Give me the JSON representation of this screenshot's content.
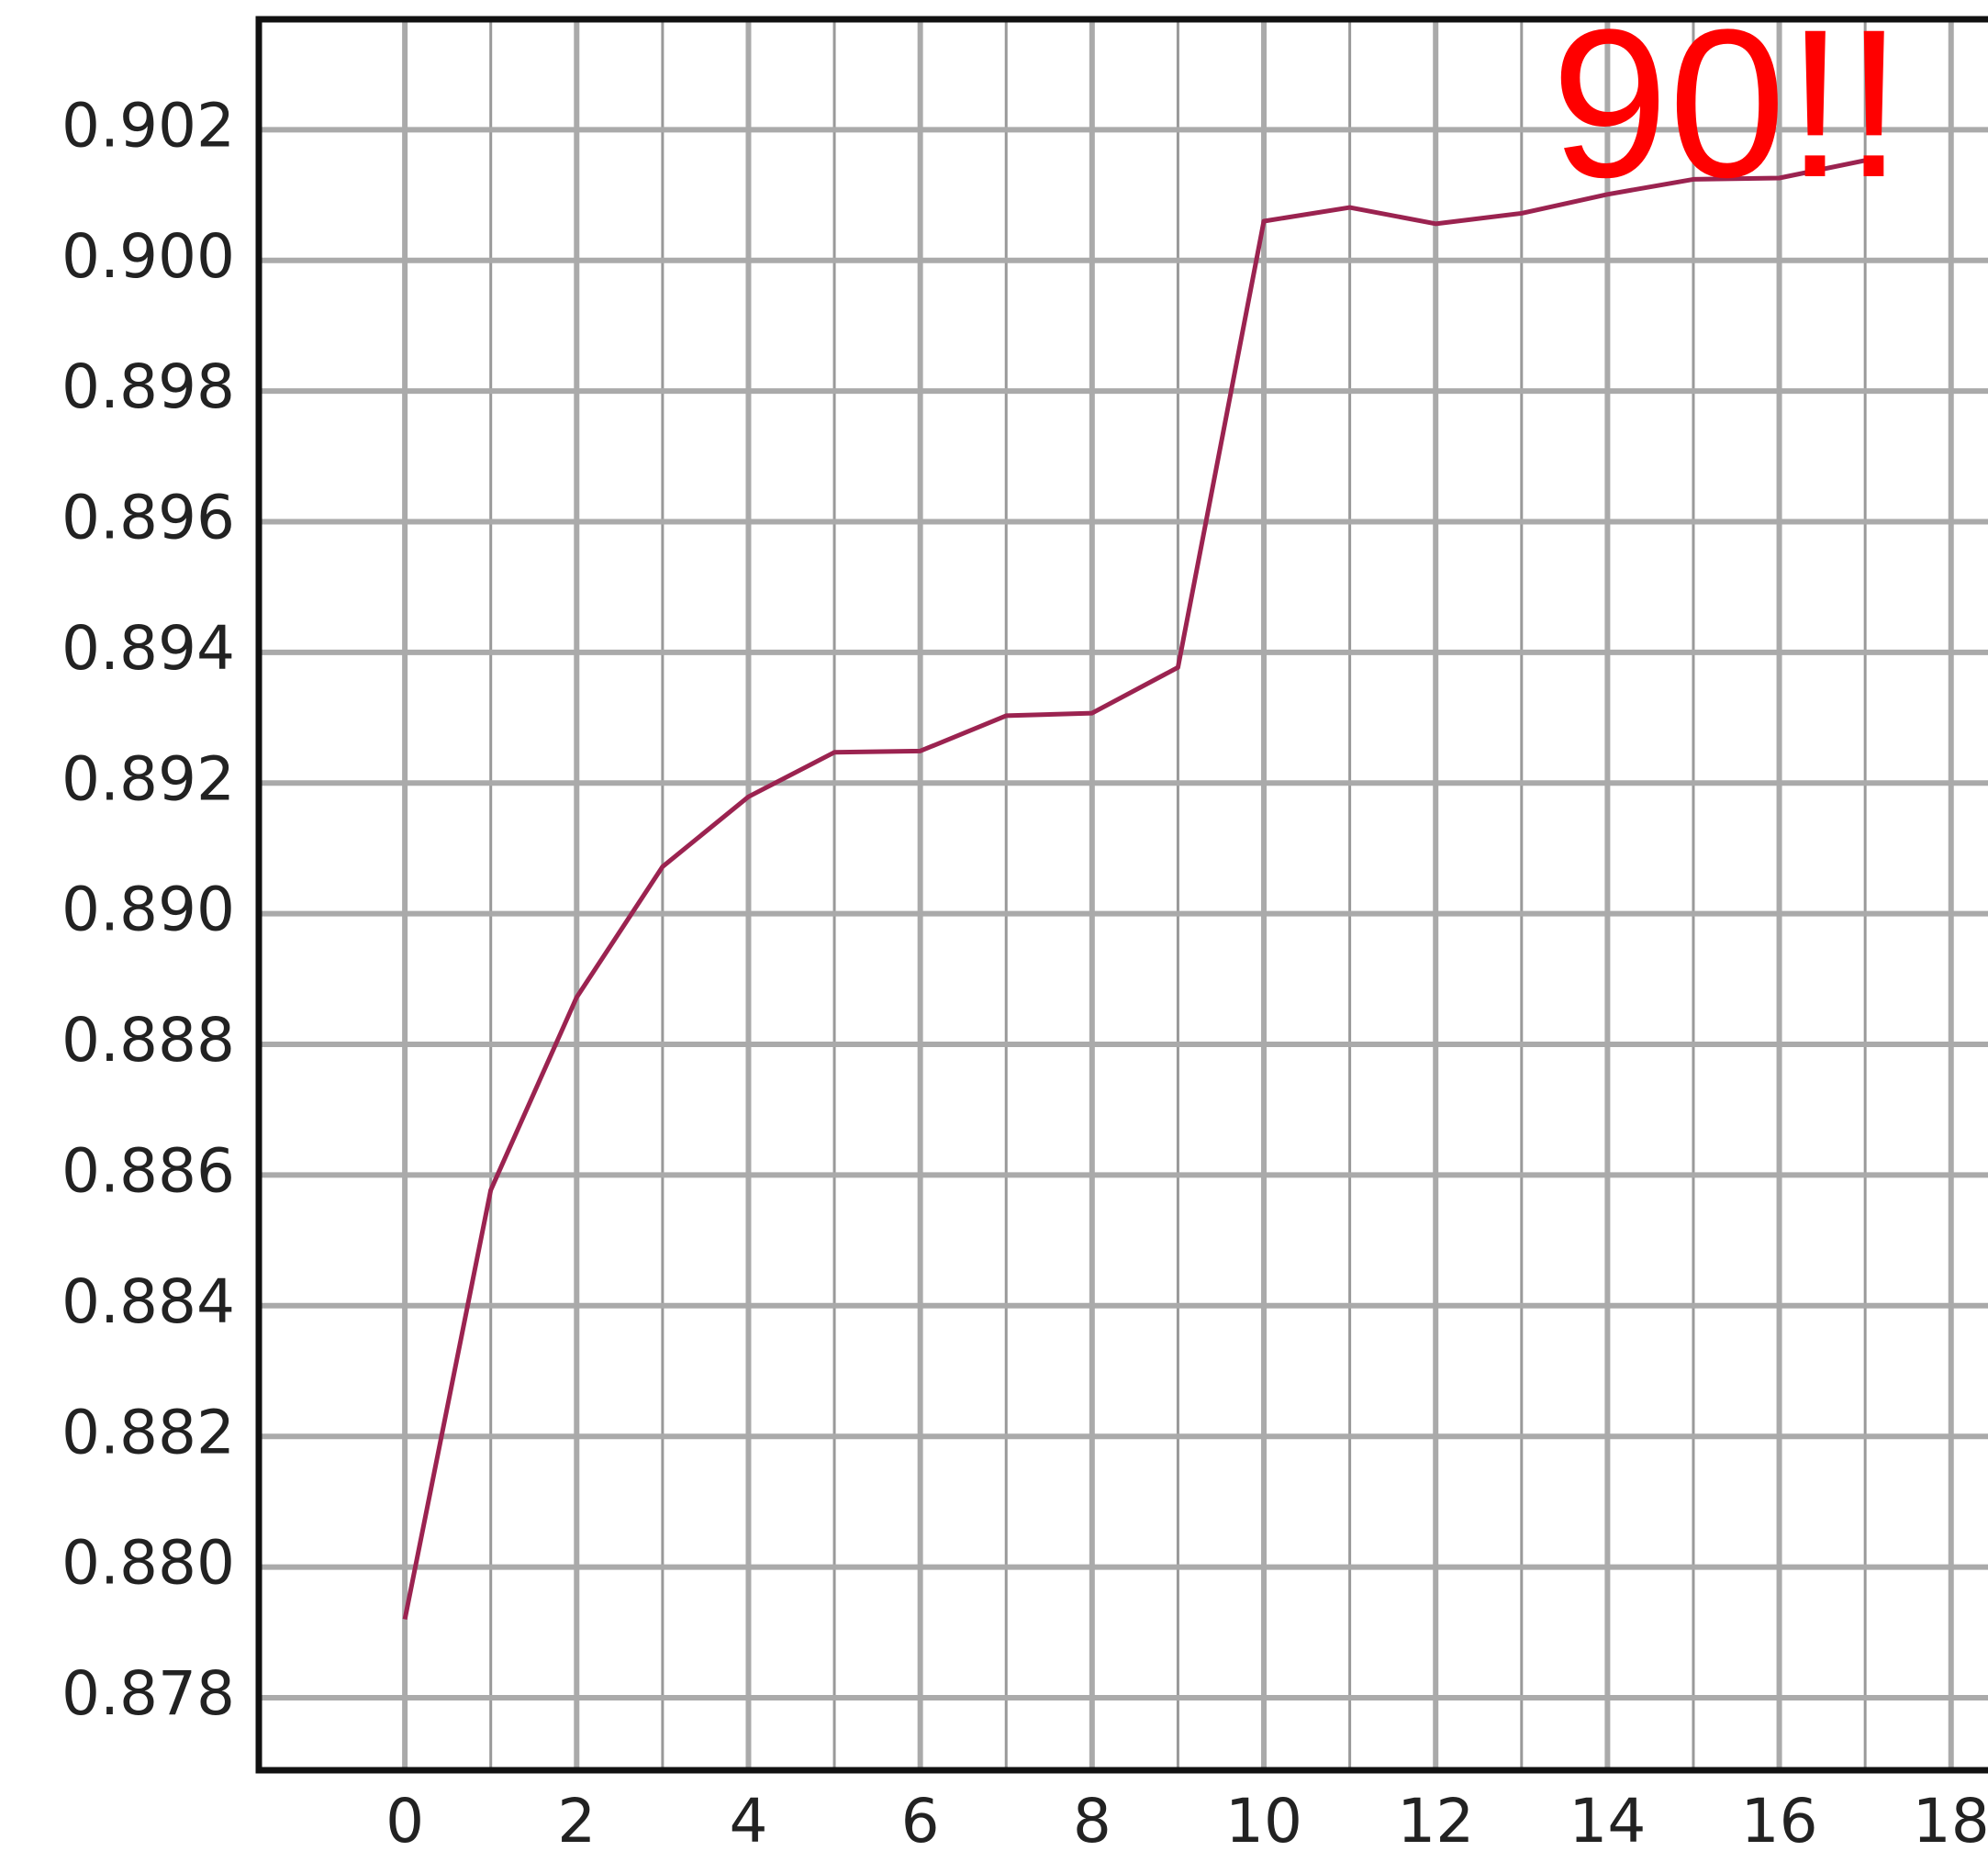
{
  "chart_data": {
    "type": "line",
    "annotation": "90!!",
    "annotation_color": "#ff0000",
    "x": [
      0,
      1,
      2,
      3,
      4,
      5,
      6,
      7,
      8,
      9,
      10,
      11,
      12,
      13,
      14,
      15,
      16,
      17
    ],
    "series": [
      {
        "color": "#9b2350",
        "values": [
          0.8792,
          0.88577,
          0.88872,
          0.89072,
          0.89179,
          0.89247,
          0.89249,
          0.89303,
          0.89307,
          0.89377,
          0.9006,
          0.90081,
          0.90056,
          0.90072,
          0.90101,
          0.90124,
          0.90126,
          0.90153
        ]
      }
    ],
    "xlim": [
      -1.7,
      18.43
    ],
    "ylim": [
      0.87689,
      0.90369
    ],
    "xticks": [
      0,
      2,
      4,
      6,
      8,
      10,
      12,
      14,
      16,
      18
    ],
    "xminorticks": [
      1,
      3,
      5,
      7,
      9,
      11,
      13,
      15,
      17
    ],
    "yticks": [
      0.878,
      {
        "value": 0.88,
        "label": "0.880"
      },
      0.882,
      0.884,
      0.886,
      0.888,
      {
        "value": 0.89,
        "label": "0.890"
      },
      0.892,
      0.894,
      0.896,
      0.898,
      {
        "value": 0.9,
        "label": "0.900"
      },
      0.902
    ],
    "grid": true
  }
}
